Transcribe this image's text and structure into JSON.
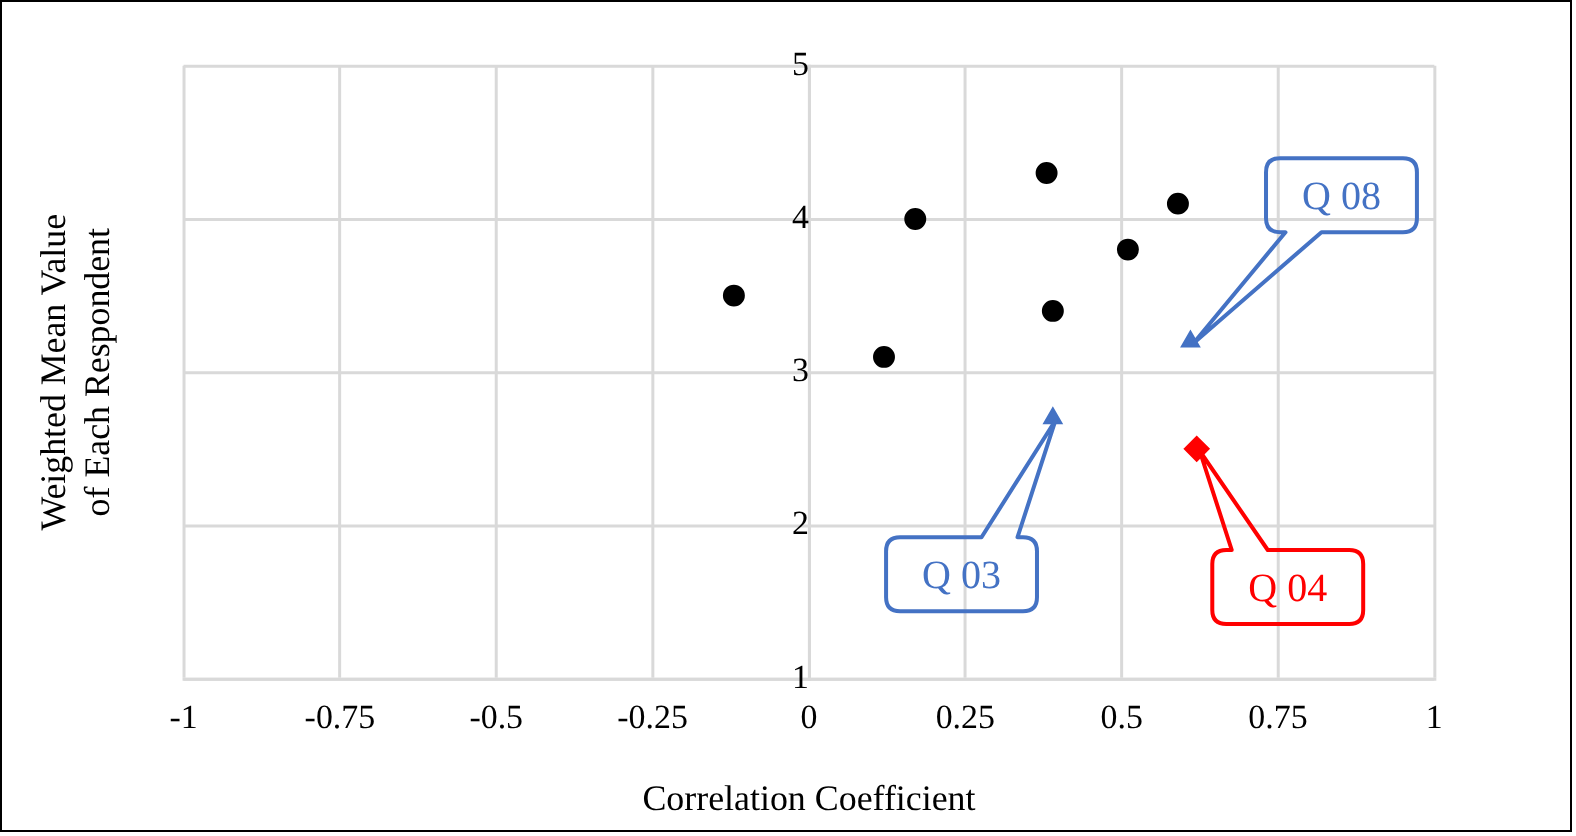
{
  "chart_data": {
    "type": "scatter",
    "xlabel": "Correlation Coefficient",
    "ylabel": "Weighted Mean Value of Each Respondent",
    "xlim": [
      -1,
      1
    ],
    "xticks": [
      -1,
      -0.75,
      -0.5,
      -0.25,
      0,
      0.25,
      0.5,
      0.75,
      1
    ],
    "ylim": [
      1,
      5
    ],
    "yticks": [
      1,
      2,
      3,
      4,
      5
    ],
    "grid": true,
    "legend": false,
    "series": [
      {
        "color": "#000000",
        "marker": "circle",
        "x": [
          -0.12,
          0.12,
          0.17,
          0.38,
          0.39,
          0.51,
          0.59
        ],
        "values": [
          3.5,
          3.1,
          4.0,
          4.3,
          3.4,
          3.8,
          4.1
        ]
      },
      {
        "color": "#4472c4",
        "marker": "triangle",
        "x": [
          0.39,
          0.61
        ],
        "values": [
          2.7,
          3.2
        ]
      },
      {
        "color": "#ff0000",
        "marker": "diamond",
        "x": [
          0.62
        ],
        "values": [
          2.5
        ]
      }
    ],
    "annotations": [
      "Q 03",
      "Q 08",
      "Q 04"
    ]
  }
}
